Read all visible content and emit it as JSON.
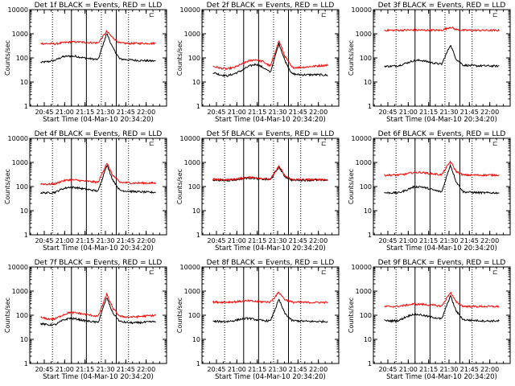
{
  "figure": {
    "panel_title_suffix": " BLACK = Events, RED = LLD",
    "xlabel": "Start Time (04-Mar-10 20:34:20)",
    "ylabel": "Counts/sec",
    "legend_mark": "⊏",
    "colors": {
      "events": "#000000",
      "lld": "#ff0000",
      "frame": "#000000"
    }
  },
  "chart_data": [
    {
      "type": "line",
      "title": "Det 1f",
      "xlabel": "Start Time (04-Mar-10 20:34:20)",
      "ylabel": "Counts/sec",
      "yscale": "log",
      "ylim": [
        1,
        10000
      ],
      "xlim": [
        "20:34:20",
        "22:15:00"
      ],
      "xticks": [
        "20:45",
        "21:00",
        "21:15",
        "21:30",
        "21:45",
        "22:00"
      ],
      "yticks": [
        "1",
        "10",
        "100",
        "1000",
        "10000"
      ],
      "dotted_lines": [
        "20:51",
        "21:27",
        "21:47"
      ],
      "solid_lines": [
        "21:05",
        "21:16",
        "21:38"
      ],
      "series": [
        {
          "name": "Events",
          "color": "#000000",
          "flare": "21:31",
          "y": [
            65,
            70,
            80,
            110,
            120,
            115,
            100,
            92,
            85,
            1050,
            270,
            90,
            85,
            80,
            78,
            76,
            74
          ]
        },
        {
          "name": "LLD",
          "color": "#ff0000",
          "flare": "21:31",
          "y": [
            400,
            390,
            380,
            420,
            450,
            460,
            440,
            430,
            420,
            1250,
            700,
            410,
            400,
            400,
            400,
            400,
            400
          ]
        }
      ]
    },
    {
      "type": "line",
      "title": "Det 2f",
      "xlabel": "Start Time (04-Mar-10 20:34:20)",
      "ylabel": "Counts/sec",
      "yscale": "log",
      "ylim": [
        1,
        10000
      ],
      "xlim": [
        "20:34:20",
        "22:15:00"
      ],
      "xticks": [
        "20:45",
        "21:00",
        "21:15",
        "21:30",
        "21:45",
        "22:00"
      ],
      "yticks": [
        "1",
        "10",
        "100",
        "1000",
        "10000"
      ],
      "dotted_lines": [
        "20:51",
        "21:27",
        "21:47"
      ],
      "solid_lines": [
        "21:05",
        "21:16",
        "21:38"
      ],
      "series": [
        {
          "name": "Events",
          "color": "#000000",
          "flare": "21:31",
          "y": [
            25,
            20,
            18,
            22,
            30,
            45,
            55,
            40,
            25,
            400,
            80,
            22,
            20,
            20,
            20,
            20,
            19
          ]
        },
        {
          "name": "LLD",
          "color": "#ff0000",
          "flare": "21:31",
          "y": [
            45,
            38,
            35,
            40,
            55,
            75,
            85,
            70,
            45,
            520,
            120,
            40,
            40,
            42,
            45,
            48,
            50
          ]
        }
      ]
    },
    {
      "type": "line",
      "title": "Det 3f",
      "xlabel": "Start Time (04-Mar-10 20:34:20)",
      "ylabel": "Counts/sec",
      "yscale": "log",
      "ylim": [
        1,
        10000
      ],
      "xlim": [
        "20:34:20",
        "22:15:00"
      ],
      "xticks": [
        "20:45",
        "21:00",
        "21:15",
        "21:30",
        "21:45",
        "22:00"
      ],
      "yticks": [
        "1",
        "10",
        "100",
        "1000",
        "10000"
      ],
      "dotted_lines": [
        "20:51",
        "21:27",
        "21:47"
      ],
      "solid_lines": [
        "21:05",
        "21:16",
        "21:38"
      ],
      "series": [
        {
          "name": "Events",
          "color": "#000000",
          "flare": "21:31",
          "y": [
            45,
            45,
            48,
            60,
            75,
            80,
            70,
            60,
            55,
            350,
            90,
            50,
            48,
            47,
            47,
            46,
            46
          ]
        },
        {
          "name": "LLD",
          "color": "#ff0000",
          "flare": "21:31",
          "y": [
            1400,
            1400,
            1400,
            1420,
            1420,
            1420,
            1410,
            1400,
            1400,
            1900,
            1500,
            1400,
            1390,
            1390,
            1380,
            1380,
            1380
          ]
        }
      ]
    },
    {
      "type": "line",
      "title": "Det 4f",
      "xlabel": "Start Time (04-Mar-10 20:34:20)",
      "ylabel": "Counts/sec",
      "yscale": "log",
      "ylim": [
        1,
        10000
      ],
      "xlim": [
        "20:34:20",
        "22:15:00"
      ],
      "xticks": [
        "20:45",
        "21:00",
        "21:15",
        "21:30",
        "21:45",
        "22:00"
      ],
      "yticks": [
        "1",
        "10",
        "100",
        "1000",
        "10000"
      ],
      "dotted_lines": [
        "20:51",
        "21:27",
        "21:47"
      ],
      "solid_lines": [
        "21:05",
        "21:16",
        "21:38"
      ],
      "series": [
        {
          "name": "Events",
          "color": "#000000",
          "flare": "21:31",
          "y": [
            55,
            55,
            58,
            80,
            95,
            90,
            80,
            72,
            65,
            800,
            200,
            70,
            65,
            62,
            60,
            58,
            58
          ]
        },
        {
          "name": "LLD",
          "color": "#ff0000",
          "flare": "21:31",
          "y": [
            130,
            125,
            130,
            170,
            190,
            185,
            170,
            160,
            150,
            950,
            300,
            150,
            145,
            140,
            140,
            140,
            140
          ]
        }
      ]
    },
    {
      "type": "line",
      "title": "Det 5f",
      "xlabel": "Start Time (04-Mar-10 20:34:20)",
      "ylabel": "Counts/sec",
      "yscale": "log",
      "ylim": [
        1,
        10000
      ],
      "xlim": [
        "20:34:20",
        "22:15:00"
      ],
      "xticks": [
        "20:45",
        "21:00",
        "21:15",
        "21:30",
        "21:45",
        "22:00"
      ],
      "yticks": [
        "1",
        "10",
        "100",
        "1000",
        "10000"
      ],
      "dotted_lines": [
        "20:51",
        "21:27",
        "21:47"
      ],
      "solid_lines": [
        "21:05",
        "21:16",
        "21:38"
      ],
      "series": [
        {
          "name": "Events",
          "color": "#000000",
          "flare": "21:31",
          "y": [
            190,
            185,
            180,
            190,
            210,
            230,
            220,
            200,
            190,
            650,
            260,
            185,
            185,
            185,
            185,
            185,
            185
          ]
        },
        {
          "name": "LLD",
          "color": "#ff0000",
          "flare": "21:31",
          "y": [
            200,
            195,
            190,
            200,
            225,
            245,
            235,
            215,
            200,
            720,
            280,
            195,
            195,
            195,
            195,
            195,
            195
          ]
        }
      ]
    },
    {
      "type": "line",
      "title": "Det 6f",
      "xlabel": "Start Time (04-Mar-10 20:34:20)",
      "ylabel": "Counts/sec",
      "yscale": "log",
      "ylim": [
        1,
        10000
      ],
      "xlim": [
        "20:34:20",
        "22:15:00"
      ],
      "xticks": [
        "20:45",
        "21:00",
        "21:15",
        "21:30",
        "21:45",
        "22:00"
      ],
      "yticks": [
        "1",
        "10",
        "100",
        "1000",
        "10000"
      ],
      "dotted_lines": [
        "20:51",
        "21:27",
        "21:47"
      ],
      "solid_lines": [
        "21:05",
        "21:16",
        "21:38"
      ],
      "series": [
        {
          "name": "Events",
          "color": "#000000",
          "flare": "21:31",
          "y": [
            55,
            55,
            55,
            70,
            95,
            100,
            85,
            70,
            60,
            800,
            160,
            60,
            58,
            56,
            55,
            55,
            55
          ]
        },
        {
          "name": "LLD",
          "color": "#ff0000",
          "flare": "21:31",
          "y": [
            300,
            300,
            300,
            330,
            380,
            390,
            360,
            330,
            310,
            1100,
            420,
            300,
            300,
            300,
            300,
            300,
            300
          ]
        }
      ]
    },
    {
      "type": "line",
      "title": "Det 7f",
      "xlabel": "Start Time (04-Mar-10 20:34:20)",
      "ylabel": "Counts/sec",
      "yscale": "log",
      "ylim": [
        1,
        10000
      ],
      "xlim": [
        "20:34:20",
        "22:15:00"
      ],
      "xticks": [
        "20:45",
        "21:00",
        "21:15",
        "21:30",
        "21:45",
        "22:00"
      ],
      "yticks": [
        "1",
        "10",
        "100",
        "1000",
        "10000"
      ],
      "dotted_lines": [
        "20:51",
        "21:27",
        "21:47"
      ],
      "solid_lines": [
        "21:05",
        "21:16",
        "21:38"
      ],
      "series": [
        {
          "name": "Events",
          "color": "#000000",
          "flare": "21:31",
          "y": [
            45,
            40,
            40,
            60,
            75,
            70,
            60,
            55,
            50,
            550,
            130,
            55,
            50,
            48,
            50,
            52,
            55
          ]
        },
        {
          "name": "LLD",
          "color": "#ff0000",
          "flare": "21:31",
          "y": [
            80,
            70,
            70,
            100,
            130,
            125,
            110,
            100,
            90,
            750,
            200,
            90,
            85,
            85,
            90,
            95,
            100
          ]
        }
      ]
    },
    {
      "type": "line",
      "title": "Det 8f",
      "xlabel": "Start Time (04-Mar-10 20:34:20)",
      "ylabel": "Counts/sec",
      "yscale": "log",
      "ylim": [
        1,
        10000
      ],
      "xlim": [
        "20:34:20",
        "22:15:00"
      ],
      "xticks": [
        "20:45",
        "21:00",
        "21:15",
        "21:30",
        "21:45",
        "22:00"
      ],
      "yticks": [
        "1",
        "10",
        "100",
        "1000",
        "10000"
      ],
      "dotted_lines": [
        "20:51",
        "21:27",
        "21:47"
      ],
      "solid_lines": [
        "21:05",
        "21:16",
        "21:38"
      ],
      "series": [
        {
          "name": "Events",
          "color": "#000000",
          "flare": "21:31",
          "y": [
            55,
            55,
            55,
            60,
            70,
            75,
            65,
            60,
            58,
            450,
            120,
            60,
            58,
            56,
            55,
            55,
            55
          ]
        },
        {
          "name": "LLD",
          "color": "#ff0000",
          "flare": "21:31",
          "y": [
            350,
            350,
            350,
            360,
            380,
            390,
            370,
            360,
            355,
            900,
            450,
            350,
            345,
            340,
            340,
            340,
            340
          ]
        }
      ]
    },
    {
      "type": "line",
      "title": "Det 9f",
      "xlabel": "Start Time (04-Mar-10 20:34:20)",
      "ylabel": "Counts/sec",
      "yscale": "log",
      "ylim": [
        1,
        10000
      ],
      "xlim": [
        "20:34:20",
        "22:15:00"
      ],
      "xticks": [
        "20:45",
        "21:00",
        "21:15",
        "21:30",
        "21:45",
        "22:00"
      ],
      "yticks": [
        "1",
        "10",
        "100",
        "1000",
        "10000"
      ],
      "dotted_lines": [
        "20:51",
        "21:27",
        "21:47"
      ],
      "solid_lines": [
        "21:05",
        "21:16",
        "21:38"
      ],
      "series": [
        {
          "name": "Events",
          "color": "#000000",
          "flare": "21:31",
          "y": [
            60,
            58,
            60,
            85,
            110,
            105,
            90,
            80,
            70,
            650,
            150,
            65,
            62,
            60,
            58,
            58,
            58
          ]
        },
        {
          "name": "LLD",
          "color": "#ff0000",
          "flare": "21:31",
          "y": [
            230,
            230,
            235,
            260,
            290,
            285,
            270,
            255,
            240,
            900,
            350,
            235,
            230,
            230,
            230,
            230,
            230
          ]
        }
      ]
    }
  ]
}
